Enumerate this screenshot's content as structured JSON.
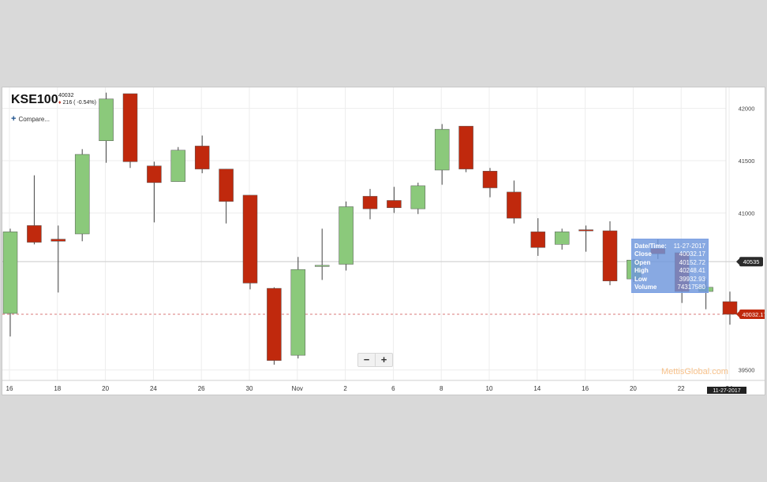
{
  "header": {
    "symbol": "KSE100",
    "last": "40032",
    "change": "216",
    "change_pct": "( -0.54%)",
    "compare_label": "Compare..."
  },
  "zoom": {
    "minus": "−",
    "plus": "+"
  },
  "watermark": "MettisGlobal.com",
  "tooltip": {
    "rows": [
      {
        "k": "Date/Time:",
        "v": "11-27-2017"
      },
      {
        "k": "Close",
        "v": "40032.17"
      },
      {
        "k": "Open",
        "v": "40152.72"
      },
      {
        "k": "High",
        "v": "40248.41"
      },
      {
        "k": "Low",
        "v": "39932.93"
      },
      {
        "k": "Volume",
        "v": "74317580"
      }
    ]
  },
  "colors": {
    "up": "#8bc97b",
    "down": "#c0290d",
    "grid": "#ededed",
    "ref_line": "#cfcfcf",
    "dashed": "#d97a7a"
  },
  "chart_data": {
    "type": "candlestick",
    "title": "",
    "ylim": [
      39400,
      42200
    ],
    "y_ticks": [
      42000,
      41500,
      41000,
      39500
    ],
    "x_tick_labels": [
      "16",
      "18",
      "20",
      "24",
      "26",
      "30",
      "Nov",
      "2",
      "6",
      "8",
      "10",
      "14",
      "16",
      "20",
      "22",
      "24"
    ],
    "reference_line": {
      "value": 40535,
      "label": "40535"
    },
    "last_price_line": {
      "value": 40032.17,
      "label": "40032.17"
    },
    "crosshair_date_label": "11-27-2017",
    "candles": [
      {
        "date": "Oct 16",
        "open": 40040,
        "high": 40850,
        "low": 39820,
        "close": 40820
      },
      {
        "date": "Oct 17",
        "open": 40880,
        "high": 41360,
        "low": 40700,
        "close": 40720
      },
      {
        "date": "Oct 18",
        "open": 40750,
        "high": 40880,
        "low": 40240,
        "close": 40730
      },
      {
        "date": "Oct 19",
        "open": 40800,
        "high": 41610,
        "low": 40730,
        "close": 41560
      },
      {
        "date": "Oct 20",
        "open": 41690,
        "high": 42150,
        "low": 41480,
        "close": 42090
      },
      {
        "date": "Oct 23",
        "open": 42140,
        "high": 42140,
        "low": 41430,
        "close": 41490
      },
      {
        "date": "Oct 24",
        "open": 41450,
        "high": 41490,
        "low": 40910,
        "close": 41290
      },
      {
        "date": "Oct 25",
        "open": 41300,
        "high": 41630,
        "low": 41300,
        "close": 41600
      },
      {
        "date": "Oct 26",
        "open": 41640,
        "high": 41740,
        "low": 41380,
        "close": 41420
      },
      {
        "date": "Oct 27",
        "open": 41420,
        "high": 41420,
        "low": 40900,
        "close": 41110
      },
      {
        "date": "Oct 30",
        "open": 41170,
        "high": 41170,
        "low": 40270,
        "close": 40330
      },
      {
        "date": "Oct 31",
        "open": 40280,
        "high": 40290,
        "low": 39550,
        "close": 39590
      },
      {
        "date": "Nov 1",
        "open": 39640,
        "high": 40580,
        "low": 39610,
        "close": 40460
      },
      {
        "date": "Nov 2",
        "open": 40500,
        "high": 40850,
        "low": 40360,
        "close": 40500
      },
      {
        "date": "Nov 3",
        "open": 40510,
        "high": 41110,
        "low": 40450,
        "close": 41060
      },
      {
        "date": "Nov 6",
        "open": 41160,
        "high": 41230,
        "low": 40940,
        "close": 41040
      },
      {
        "date": "Nov 7",
        "open": 41120,
        "high": 41250,
        "low": 41000,
        "close": 41050
      },
      {
        "date": "Nov 8",
        "open": 41040,
        "high": 41290,
        "low": 40990,
        "close": 41260
      },
      {
        "date": "Nov 9",
        "open": 41410,
        "high": 41850,
        "low": 41270,
        "close": 41800
      },
      {
        "date": "Nov 10",
        "open": 41830,
        "high": 41830,
        "low": 41390,
        "close": 41420
      },
      {
        "date": "Nov 13",
        "open": 41400,
        "high": 41430,
        "low": 41150,
        "close": 41240
      },
      {
        "date": "Nov 14",
        "open": 41200,
        "high": 41310,
        "low": 40900,
        "close": 40950
      },
      {
        "date": "Nov 15",
        "open": 40820,
        "high": 40950,
        "low": 40590,
        "close": 40670
      },
      {
        "date": "Nov 16",
        "open": 40700,
        "high": 40850,
        "low": 40650,
        "close": 40820
      },
      {
        "date": "Nov 17",
        "open": 40840,
        "high": 40880,
        "low": 40630,
        "close": 40830
      },
      {
        "date": "Nov 20",
        "open": 40830,
        "high": 40920,
        "low": 40310,
        "close": 40350
      },
      {
        "date": "Nov 21",
        "open": 40370,
        "high": 40560,
        "low": 40340,
        "close": 40550
      },
      {
        "date": "Nov 22",
        "open": 40660,
        "high": 40750,
        "low": 40560,
        "close": 40610
      },
      {
        "date": "Nov 23",
        "open": 40620,
        "high": 40620,
        "low": 40140,
        "close": 40250
      },
      {
        "date": "Nov 24",
        "open": 40250,
        "high": 40370,
        "low": 40080,
        "close": 40290
      },
      {
        "date": "Nov 27",
        "open": 40152.72,
        "high": 40248.41,
        "low": 39932.93,
        "close": 40032.17
      }
    ]
  }
}
